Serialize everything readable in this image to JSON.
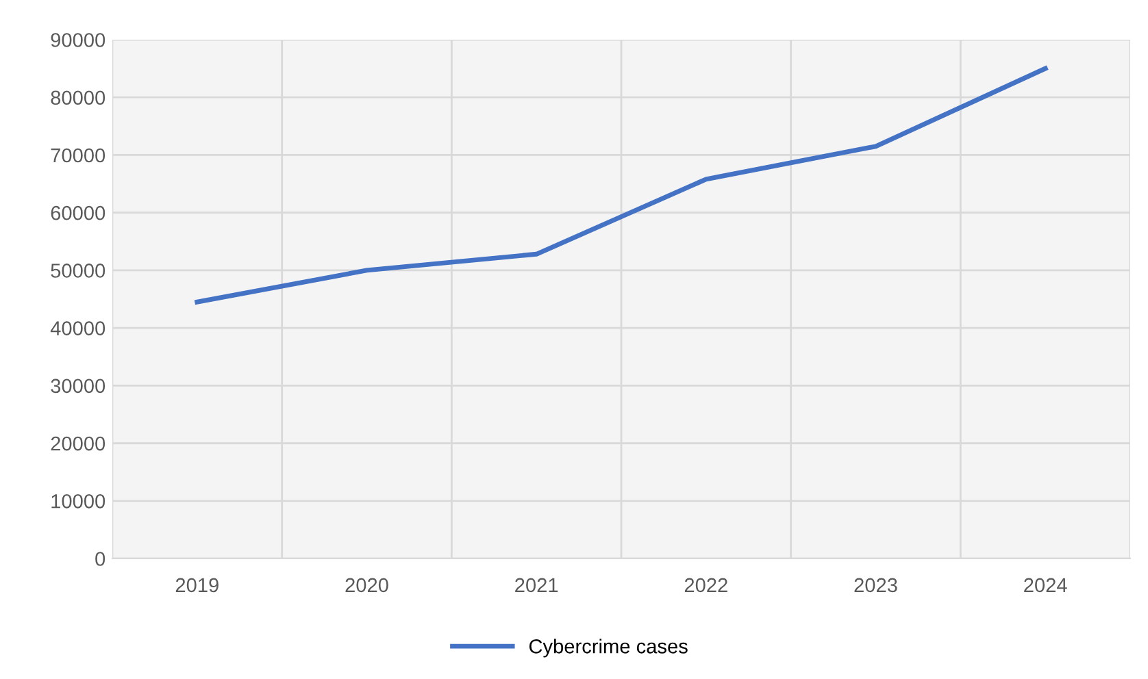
{
  "chart_data": {
    "type": "line",
    "categories": [
      "2019",
      "2020",
      "2021",
      "2022",
      "2023",
      "2024"
    ],
    "series": [
      {
        "name": "Cybercrime cases",
        "color": "#4472c4",
        "values": [
          44500,
          50000,
          52800,
          65800,
          71500,
          85000
        ]
      }
    ],
    "ylim": [
      0,
      90000
    ],
    "yticks": [
      0,
      10000,
      20000,
      30000,
      40000,
      50000,
      60000,
      70000,
      80000,
      90000
    ],
    "grid": true,
    "legend": "bottom",
    "marker": "none",
    "line_style": "solid"
  }
}
